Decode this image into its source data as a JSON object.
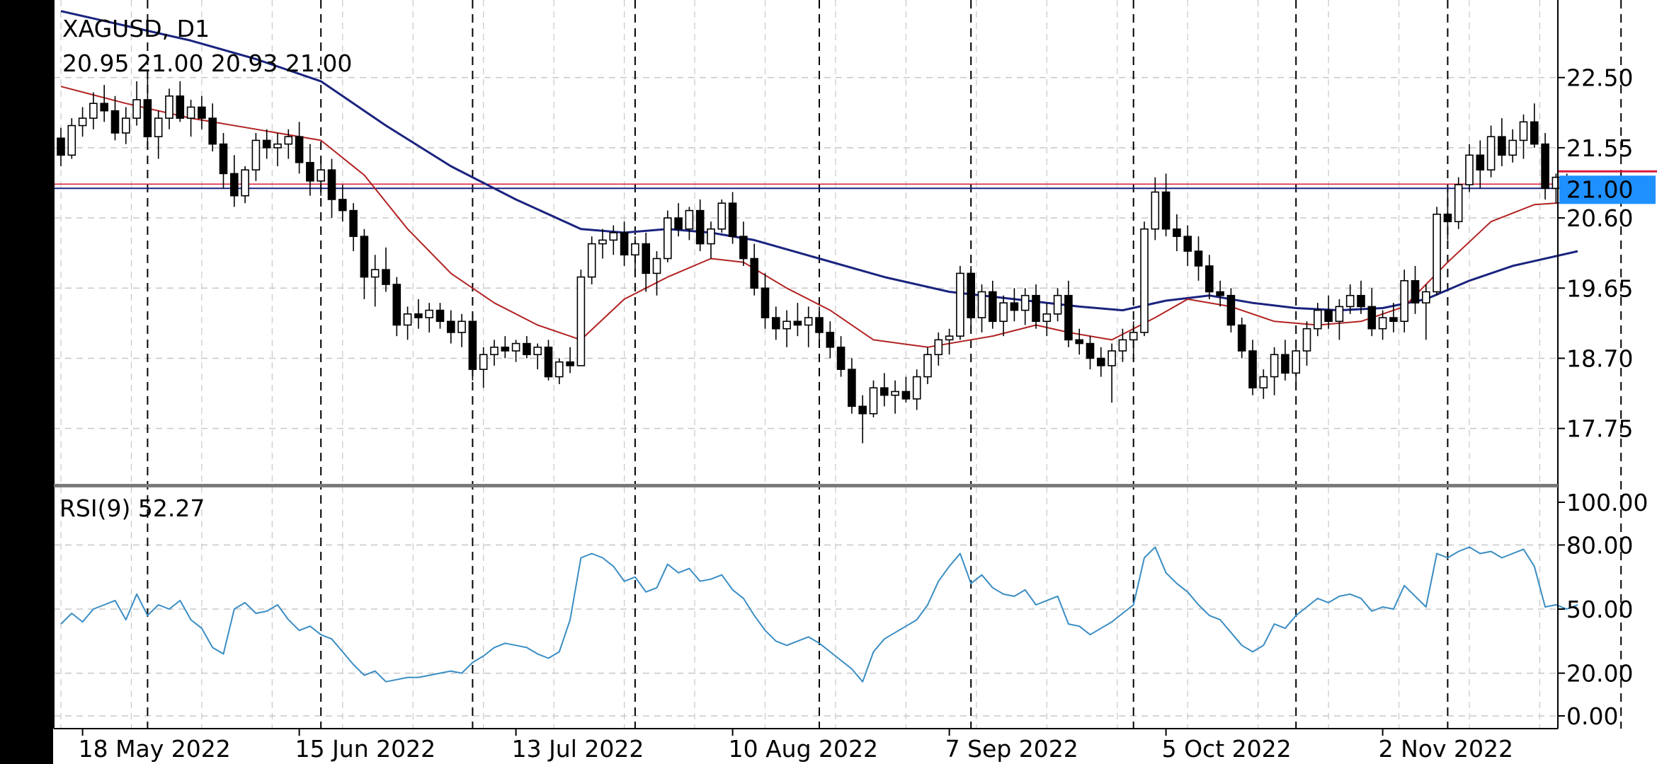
{
  "chart_data": {
    "type": "candlestick",
    "symbol": "XAGUSD, D1",
    "ohlc_label": "20.95 21.00 20.93 21.00",
    "current_price": 21.0,
    "current_price_label": "21.00",
    "colors": {
      "background": "#ffffff",
      "candle": "#000000",
      "ma_fast": "#b22222",
      "ma_slow": "#1a237e",
      "rsi": "#3a8dc4",
      "price_tag": "#1e90ff",
      "bid_line": "#1a237e",
      "ask_line": "#d81b3b",
      "grid": "#c8c8c8"
    },
    "price_axis": {
      "min": 17.0,
      "max": 23.55,
      "ticks": [
        22.5,
        21.55,
        20.6,
        19.65,
        18.7,
        17.75
      ],
      "tick_labels": [
        "22.50",
        "21.55",
        "20.60",
        "19.65",
        "18.70",
        "17.75"
      ]
    },
    "x_axis": {
      "labels": [
        "18 May 2022",
        "15 Jun 2022",
        "13 Jul 2022",
        "10 Aug 2022",
        "7 Sep 2022",
        "5 Oct 2022",
        "2 Nov 2022"
      ],
      "label_bars": [
        2,
        22,
        42,
        62,
        82,
        102,
        122
      ],
      "period_separator_bars": [
        8,
        24,
        38,
        53,
        70,
        84,
        99,
        114,
        128,
        144
      ],
      "total_slots": 141
    },
    "candles": [
      [
        21.68,
        21.82,
        21.3,
        21.45
      ],
      [
        21.45,
        21.95,
        21.4,
        21.85
      ],
      [
        21.85,
        22.1,
        21.7,
        21.95
      ],
      [
        21.95,
        22.3,
        21.8,
        22.15
      ],
      [
        22.15,
        22.4,
        21.9,
        22.05
      ],
      [
        22.05,
        22.25,
        21.65,
        21.75
      ],
      [
        21.75,
        22.1,
        21.6,
        21.95
      ],
      [
        21.95,
        22.45,
        21.85,
        22.2
      ],
      [
        22.2,
        22.5,
        21.6,
        21.7
      ],
      [
        21.7,
        22.05,
        21.4,
        21.95
      ],
      [
        21.95,
        22.35,
        21.8,
        22.25
      ],
      [
        22.25,
        22.45,
        21.9,
        21.95
      ],
      [
        21.95,
        22.2,
        21.7,
        22.1
      ],
      [
        22.1,
        22.25,
        21.8,
        21.95
      ],
      [
        21.95,
        22.15,
        21.5,
        21.6
      ],
      [
        21.6,
        21.75,
        21.0,
        21.2
      ],
      [
        21.2,
        21.45,
        20.75,
        20.9
      ],
      [
        20.9,
        21.3,
        20.8,
        21.25
      ],
      [
        21.25,
        21.75,
        21.1,
        21.65
      ],
      [
        21.65,
        21.8,
        21.4,
        21.55
      ],
      [
        21.55,
        21.75,
        21.3,
        21.6
      ],
      [
        21.6,
        21.8,
        21.4,
        21.7
      ],
      [
        21.7,
        21.9,
        21.2,
        21.35
      ],
      [
        21.35,
        21.6,
        20.9,
        21.1
      ],
      [
        21.1,
        21.4,
        20.9,
        21.25
      ],
      [
        21.25,
        21.4,
        20.6,
        20.85
      ],
      [
        20.85,
        21.05,
        20.55,
        20.7
      ],
      [
        20.7,
        20.8,
        20.15,
        20.35
      ],
      [
        20.35,
        20.45,
        19.5,
        19.8
      ],
      [
        19.8,
        20.1,
        19.4,
        19.9
      ],
      [
        19.9,
        20.2,
        19.6,
        19.7
      ],
      [
        19.7,
        19.8,
        19.0,
        19.15
      ],
      [
        19.15,
        19.4,
        18.95,
        19.3
      ],
      [
        19.3,
        19.5,
        19.1,
        19.25
      ],
      [
        19.25,
        19.45,
        19.05,
        19.35
      ],
      [
        19.35,
        19.45,
        19.1,
        19.2
      ],
      [
        19.2,
        19.35,
        18.9,
        19.05
      ],
      [
        19.05,
        19.3,
        18.85,
        19.2
      ],
      [
        19.2,
        19.3,
        18.4,
        18.55
      ],
      [
        18.55,
        18.85,
        18.3,
        18.75
      ],
      [
        18.75,
        18.95,
        18.6,
        18.85
      ],
      [
        18.85,
        19.0,
        18.7,
        18.8
      ],
      [
        18.8,
        18.95,
        18.65,
        18.9
      ],
      [
        18.9,
        19.0,
        18.7,
        18.75
      ],
      [
        18.75,
        18.9,
        18.55,
        18.85
      ],
      [
        18.85,
        18.95,
        18.4,
        18.45
      ],
      [
        18.45,
        18.7,
        18.35,
        18.65
      ],
      [
        18.65,
        18.85,
        18.5,
        18.6
      ],
      [
        18.6,
        19.9,
        18.6,
        19.8
      ],
      [
        19.8,
        20.35,
        19.7,
        20.25
      ],
      [
        20.25,
        20.45,
        20.05,
        20.3
      ],
      [
        20.3,
        20.5,
        20.1,
        20.4
      ],
      [
        20.4,
        20.55,
        19.95,
        20.1
      ],
      [
        20.1,
        20.35,
        19.9,
        20.25
      ],
      [
        20.25,
        20.4,
        19.6,
        19.85
      ],
      [
        19.85,
        20.15,
        19.55,
        20.05
      ],
      [
        20.05,
        20.7,
        20.0,
        20.6
      ],
      [
        20.6,
        20.8,
        20.35,
        20.45
      ],
      [
        20.45,
        20.75,
        20.3,
        20.7
      ],
      [
        20.7,
        20.85,
        20.15,
        20.25
      ],
      [
        20.25,
        20.55,
        20.05,
        20.45
      ],
      [
        20.45,
        20.85,
        20.4,
        20.8
      ],
      [
        20.8,
        20.95,
        20.25,
        20.35
      ],
      [
        20.35,
        20.55,
        19.95,
        20.05
      ],
      [
        20.05,
        20.25,
        19.55,
        19.65
      ],
      [
        19.65,
        19.85,
        19.1,
        19.25
      ],
      [
        19.25,
        19.4,
        18.95,
        19.1
      ],
      [
        19.1,
        19.35,
        18.85,
        19.2
      ],
      [
        19.2,
        19.45,
        19.0,
        19.15
      ],
      [
        19.15,
        19.4,
        18.85,
        19.25
      ],
      [
        19.25,
        19.4,
        18.95,
        19.05
      ],
      [
        19.05,
        19.2,
        18.7,
        18.85
      ],
      [
        18.85,
        19.0,
        18.45,
        18.55
      ],
      [
        18.55,
        18.7,
        17.95,
        18.05
      ],
      [
        18.05,
        18.2,
        17.55,
        17.95
      ],
      [
        17.95,
        18.4,
        17.9,
        18.3
      ],
      [
        18.3,
        18.5,
        18.05,
        18.2
      ],
      [
        18.2,
        18.4,
        17.95,
        18.25
      ],
      [
        18.25,
        18.45,
        18.1,
        18.15
      ],
      [
        18.15,
        18.55,
        18.0,
        18.45
      ],
      [
        18.45,
        18.85,
        18.35,
        18.75
      ],
      [
        18.75,
        19.05,
        18.6,
        18.95
      ],
      [
        18.95,
        19.1,
        18.75,
        19.0
      ],
      [
        19.0,
        19.95,
        18.95,
        19.85
      ],
      [
        19.85,
        19.95,
        19.1,
        19.25
      ],
      [
        19.25,
        19.7,
        19.05,
        19.6
      ],
      [
        19.6,
        19.75,
        19.1,
        19.2
      ],
      [
        19.2,
        19.55,
        19.0,
        19.45
      ],
      [
        19.45,
        19.65,
        19.2,
        19.35
      ],
      [
        19.35,
        19.65,
        19.15,
        19.55
      ],
      [
        19.55,
        19.7,
        19.1,
        19.2
      ],
      [
        19.2,
        19.45,
        19.0,
        19.3
      ],
      [
        19.3,
        19.65,
        19.2,
        19.55
      ],
      [
        19.55,
        19.75,
        18.85,
        18.95
      ],
      [
        18.95,
        19.1,
        18.75,
        18.9
      ],
      [
        18.9,
        19.0,
        18.55,
        18.7
      ],
      [
        18.7,
        18.85,
        18.45,
        18.6
      ],
      [
        18.6,
        18.9,
        18.1,
        18.8
      ],
      [
        18.8,
        19.1,
        18.65,
        18.95
      ],
      [
        18.95,
        19.2,
        18.75,
        19.05
      ],
      [
        19.05,
        20.55,
        19.0,
        20.45
      ],
      [
        20.45,
        21.15,
        20.3,
        20.95
      ],
      [
        20.95,
        21.2,
        20.35,
        20.45
      ],
      [
        20.45,
        20.65,
        20.15,
        20.35
      ],
      [
        20.35,
        20.5,
        19.95,
        20.15
      ],
      [
        20.15,
        20.35,
        19.75,
        19.95
      ],
      [
        19.95,
        20.1,
        19.5,
        19.6
      ],
      [
        19.6,
        19.75,
        19.4,
        19.55
      ],
      [
        19.55,
        19.65,
        19.05,
        19.15
      ],
      [
        19.15,
        19.25,
        18.7,
        18.8
      ],
      [
        18.8,
        18.95,
        18.2,
        18.3
      ],
      [
        18.3,
        18.55,
        18.15,
        18.45
      ],
      [
        18.45,
        18.85,
        18.2,
        18.75
      ],
      [
        18.75,
        18.95,
        18.4,
        18.5
      ],
      [
        18.5,
        18.9,
        18.3,
        18.8
      ],
      [
        18.8,
        19.2,
        18.6,
        19.1
      ],
      [
        19.1,
        19.45,
        19.0,
        19.35
      ],
      [
        19.35,
        19.55,
        19.1,
        19.2
      ],
      [
        19.2,
        19.5,
        18.95,
        19.4
      ],
      [
        19.4,
        19.7,
        19.3,
        19.55
      ],
      [
        19.55,
        19.75,
        19.3,
        19.4
      ],
      [
        19.4,
        19.65,
        19.0,
        19.1
      ],
      [
        19.1,
        19.35,
        18.95,
        19.25
      ],
      [
        19.25,
        19.45,
        19.05,
        19.2
      ],
      [
        19.2,
        19.9,
        19.05,
        19.75
      ],
      [
        19.75,
        19.95,
        19.3,
        19.45
      ],
      [
        19.45,
        19.7,
        18.95,
        19.6
      ],
      [
        19.6,
        20.75,
        19.55,
        20.65
      ],
      [
        20.65,
        20.95,
        20.3,
        20.55
      ],
      [
        20.55,
        21.15,
        20.45,
        21.05
      ],
      [
        21.05,
        21.6,
        20.95,
        21.45
      ],
      [
        21.45,
        21.65,
        21.0,
        21.25
      ],
      [
        21.25,
        21.85,
        21.15,
        21.7
      ],
      [
        21.7,
        21.95,
        21.3,
        21.45
      ],
      [
        21.45,
        21.8,
        21.35,
        21.65
      ],
      [
        21.65,
        22.0,
        21.4,
        21.9
      ],
      [
        21.9,
        22.15,
        21.55,
        21.6
      ],
      [
        21.6,
        21.75,
        20.85,
        21.0
      ],
      [
        21.0,
        21.2,
        20.8,
        21.15
      ],
      [
        21.15,
        21.2,
        20.85,
        20.95
      ],
      [
        20.95,
        21.0,
        20.93,
        21.0
      ]
    ],
    "ma_fast_points": [
      [
        0,
        22.38
      ],
      [
        6,
        22.15
      ],
      [
        12,
        21.95
      ],
      [
        18,
        21.8
      ],
      [
        24,
        21.65
      ],
      [
        28,
        21.18
      ],
      [
        32,
        20.45
      ],
      [
        36,
        19.85
      ],
      [
        40,
        19.45
      ],
      [
        44,
        19.15
      ],
      [
        48,
        18.95
      ],
      [
        52,
        19.5
      ],
      [
        56,
        19.8
      ],
      [
        60,
        20.05
      ],
      [
        63,
        20.0
      ],
      [
        67,
        19.65
      ],
      [
        71,
        19.35
      ],
      [
        75,
        18.95
      ],
      [
        80,
        18.85
      ],
      [
        86,
        19.0
      ],
      [
        90,
        19.15
      ],
      [
        93,
        19.05
      ],
      [
        97,
        18.95
      ],
      [
        101,
        19.25
      ],
      [
        104,
        19.5
      ],
      [
        108,
        19.4
      ],
      [
        112,
        19.2
      ],
      [
        116,
        19.15
      ],
      [
        120,
        19.2
      ],
      [
        124,
        19.4
      ],
      [
        128,
        20.0
      ],
      [
        132,
        20.55
      ],
      [
        136,
        20.78
      ],
      [
        140,
        20.82
      ]
    ],
    "ma_slow_points": [
      [
        0,
        23.4
      ],
      [
        6,
        23.2
      ],
      [
        12,
        23.0
      ],
      [
        18,
        22.75
      ],
      [
        24,
        22.45
      ],
      [
        30,
        21.85
      ],
      [
        36,
        21.3
      ],
      [
        42,
        20.85
      ],
      [
        48,
        20.45
      ],
      [
        52,
        20.4
      ],
      [
        56,
        20.45
      ],
      [
        60,
        20.4
      ],
      [
        64,
        20.3
      ],
      [
        70,
        20.05
      ],
      [
        76,
        19.8
      ],
      [
        82,
        19.6
      ],
      [
        88,
        19.5
      ],
      [
        94,
        19.4
      ],
      [
        98,
        19.35
      ],
      [
        102,
        19.48
      ],
      [
        106,
        19.55
      ],
      [
        110,
        19.45
      ],
      [
        114,
        19.38
      ],
      [
        118,
        19.35
      ],
      [
        122,
        19.38
      ],
      [
        126,
        19.5
      ],
      [
        130,
        19.75
      ],
      [
        134,
        19.95
      ],
      [
        140,
        20.15
      ]
    ],
    "rsi": {
      "label": "RSI(9) 52.27",
      "value_label": "52.27",
      "axis": {
        "min": 0,
        "max": 100,
        "ticks": [
          100,
          80,
          50,
          20,
          0
        ],
        "tick_labels": [
          "100.00",
          "80.00",
          "50.00",
          "20.00",
          "0.00"
        ]
      },
      "values": [
        43,
        48,
        44,
        50,
        52,
        54,
        45,
        57,
        47,
        52,
        50,
        54,
        45,
        41,
        32,
        29,
        50,
        53,
        48,
        49,
        52,
        45,
        40,
        42,
        38,
        36,
        30,
        24,
        19,
        21,
        16,
        17,
        18,
        18,
        19,
        20,
        21,
        20,
        25,
        28,
        32,
        34,
        33,
        32,
        29,
        27,
        30,
        45,
        74,
        76,
        74,
        70,
        63,
        65,
        58,
        60,
        71,
        67,
        69,
        63,
        64,
        66,
        59,
        55,
        47,
        40,
        35,
        33,
        35,
        37,
        34,
        30,
        26,
        22,
        16,
        30,
        36,
        39,
        42,
        45,
        52,
        63,
        70,
        76,
        62,
        66,
        60,
        57,
        56,
        59,
        52,
        54,
        56,
        43,
        42,
        38,
        41,
        44,
        48,
        52,
        74,
        79,
        67,
        62,
        58,
        52,
        47,
        45,
        39,
        33,
        30,
        33,
        43,
        41,
        47,
        51,
        55,
        53,
        56,
        57,
        55,
        49,
        51,
        50,
        61,
        56,
        51,
        76,
        74,
        77,
        79,
        76,
        77,
        74,
        76,
        78,
        70,
        51,
        52,
        50,
        52
      ]
    }
  }
}
